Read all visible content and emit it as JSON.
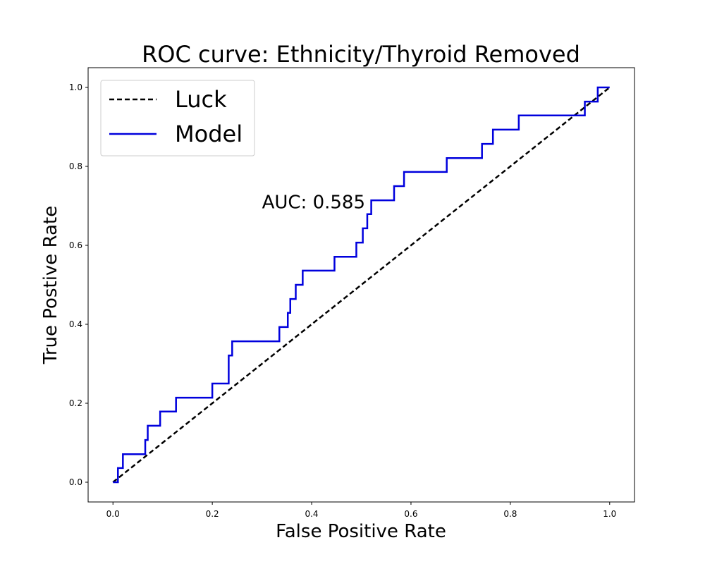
{
  "chart_data": {
    "type": "line",
    "title": "ROC curve: Ethnicity/Thyroid Removed",
    "xlabel": "False Positive Rate",
    "ylabel": "True Postive Rate",
    "xlim": [
      -0.05,
      1.05
    ],
    "ylim": [
      -0.05,
      1.05
    ],
    "x_ticks": [
      0.0,
      0.2,
      0.4,
      0.6,
      0.8,
      1.0
    ],
    "y_ticks": [
      0.0,
      0.2,
      0.4,
      0.6,
      0.8,
      1.0
    ],
    "x_tick_labels": [
      "0.0",
      "0.2",
      "0.4",
      "0.6",
      "0.8",
      "1.0"
    ],
    "y_tick_labels": [
      "0.0",
      "0.2",
      "0.4",
      "0.6",
      "0.8",
      "1.0"
    ],
    "grid": false,
    "legend_position": "top-left",
    "annotation": {
      "text": "AUC: 0.585",
      "x": 0.3,
      "y": 0.71
    },
    "series": [
      {
        "name": "Luck",
        "style": "dashed",
        "color": "#000000",
        "x": [
          0.0,
          1.0
        ],
        "y": [
          0.0,
          1.0
        ]
      },
      {
        "name": "Model",
        "style": "solid",
        "color": "#0000dd",
        "x": [
          0.0,
          0.01,
          0.01,
          0.02,
          0.02,
          0.065,
          0.065,
          0.07,
          0.07,
          0.095,
          0.095,
          0.127,
          0.127,
          0.2,
          0.2,
          0.233,
          0.233,
          0.24,
          0.24,
          0.335,
          0.335,
          0.352,
          0.352,
          0.357,
          0.357,
          0.368,
          0.368,
          0.382,
          0.382,
          0.446,
          0.446,
          0.49,
          0.49,
          0.503,
          0.503,
          0.512,
          0.512,
          0.52,
          0.52,
          0.566,
          0.566,
          0.586,
          0.586,
          0.672,
          0.672,
          0.743,
          0.743,
          0.765,
          0.765,
          0.817,
          0.817,
          0.95,
          0.95,
          0.976,
          0.976,
          1.0
        ],
        "y": [
          0.0,
          0.0,
          0.036,
          0.036,
          0.071,
          0.071,
          0.107,
          0.107,
          0.143,
          0.143,
          0.179,
          0.179,
          0.214,
          0.214,
          0.25,
          0.25,
          0.321,
          0.321,
          0.357,
          0.357,
          0.393,
          0.393,
          0.429,
          0.429,
          0.464,
          0.464,
          0.5,
          0.5,
          0.536,
          0.536,
          0.571,
          0.571,
          0.607,
          0.607,
          0.643,
          0.643,
          0.679,
          0.679,
          0.714,
          0.714,
          0.75,
          0.75,
          0.786,
          0.786,
          0.821,
          0.821,
          0.857,
          0.857,
          0.893,
          0.893,
          0.929,
          0.929,
          0.964,
          0.964,
          1.0,
          1.0
        ]
      }
    ]
  }
}
